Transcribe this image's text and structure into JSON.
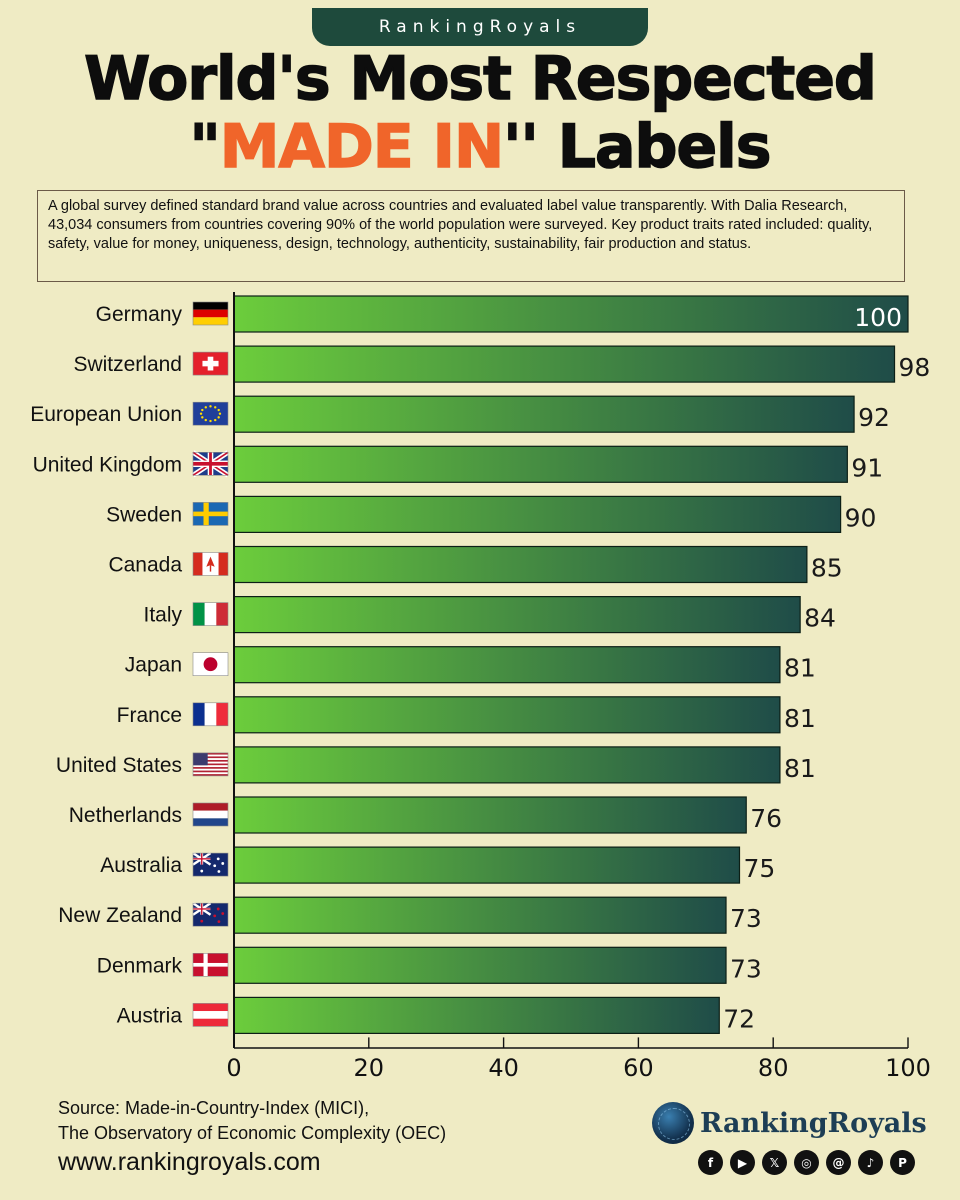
{
  "brand": "RankingRoyals",
  "title": {
    "line1": "World's  Most Respected",
    "line2_open": "\"",
    "line2_highlight": "MADE IN",
    "line2_close": "'' Labels"
  },
  "description": "A global survey defined standard brand value across countries and evaluated label value transparently. With Dalia Research, 43,034 consumers from countries covering 90% of the world population were surveyed. Key product traits rated included: quality, safety, value for money, uniqueness, design, technology, authenticity, sustainability, fair production and status.",
  "source": {
    "line1": "Source:  Made-in-Country-Index (MICI),",
    "line2": "The Observatory of Economic Complexity (OEC)"
  },
  "url": "www.rankingroyals.com",
  "logo_text": "RankingRoyals",
  "social_icons": [
    "facebook-icon",
    "youtube-icon",
    "x-icon",
    "instagram-icon",
    "threads-icon",
    "tiktok-icon",
    "pinterest-icon"
  ],
  "colors": {
    "background": "#efebc4",
    "bar_start": "#6ccd3c",
    "bar_end": "#1f4c48",
    "title_highlight": "#f0652a",
    "brand_tab": "#1e4a3c"
  },
  "chart_data": {
    "type": "bar",
    "orientation": "horizontal",
    "categories": [
      "Germany",
      "Switzerland",
      "European Union",
      "United Kingdom",
      "Sweden",
      "Canada",
      "Italy",
      "Japan",
      "France",
      "United States",
      "Netherlands",
      "Australia",
      "New Zealand",
      "Denmark",
      "Austria"
    ],
    "values": [
      100,
      98,
      92,
      91,
      90,
      85,
      84,
      81,
      81,
      81,
      76,
      75,
      73,
      73,
      72
    ],
    "value_labels": [
      "100",
      "98",
      "92",
      "91",
      "90",
      "85",
      "84",
      "81",
      "81",
      "81",
      "76",
      "75",
      "73",
      "73",
      "72"
    ],
    "flags": [
      "germany-flag",
      "switzerland-flag",
      "european-union-flag",
      "united-kingdom-flag",
      "sweden-flag",
      "canada-flag",
      "italy-flag",
      "japan-flag",
      "france-flag",
      "united-states-flag",
      "netherlands-flag",
      "australia-flag",
      "new-zealand-flag",
      "denmark-flag",
      "austria-flag"
    ],
    "xlim": [
      0,
      100
    ],
    "xticks": [
      0,
      20,
      40,
      60,
      80,
      100
    ],
    "grid": false,
    "title": "",
    "xlabel": "",
    "ylabel": ""
  }
}
